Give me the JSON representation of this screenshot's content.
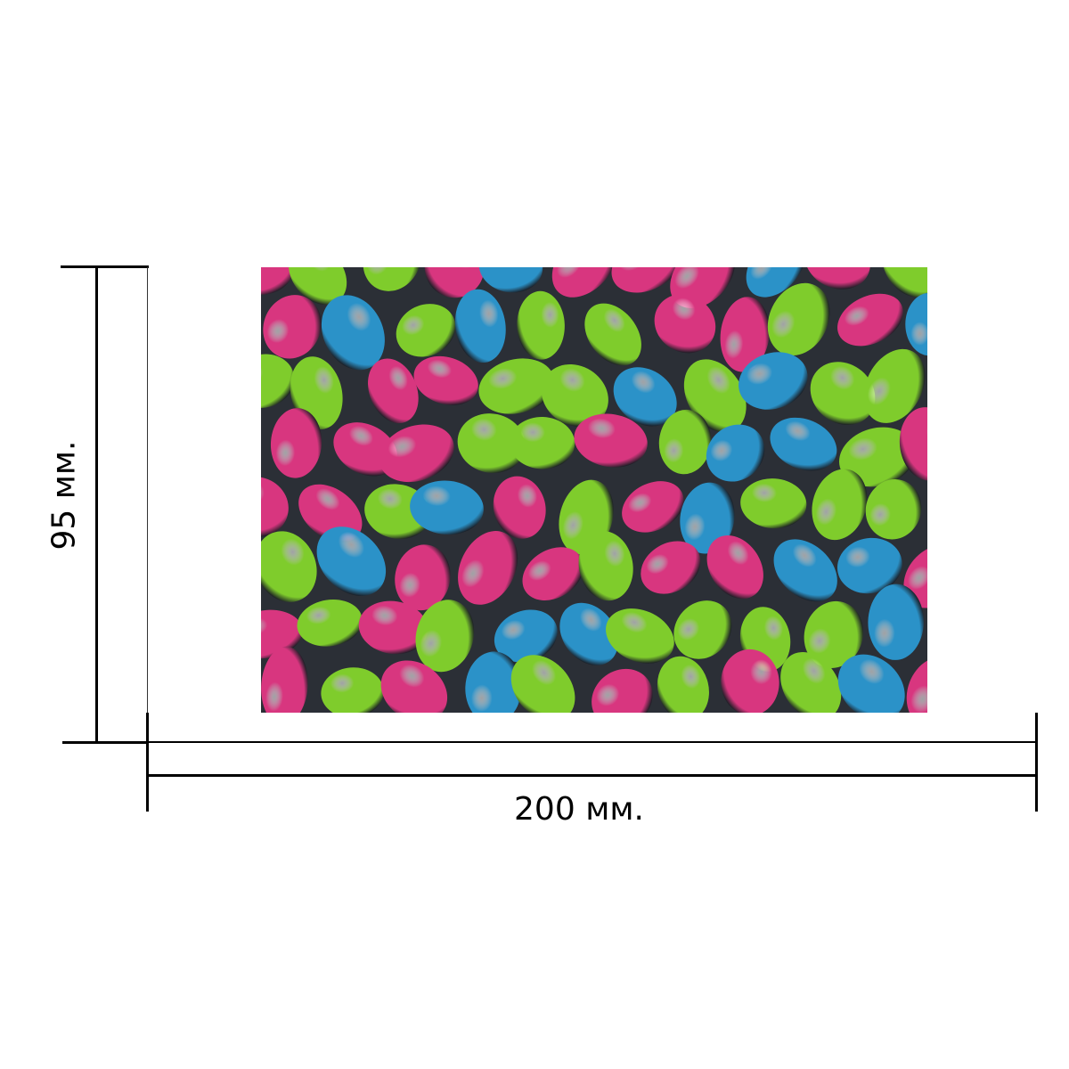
{
  "dimensions": {
    "width_label": "200 мм.",
    "height_label": "95 мм."
  },
  "photo": {
    "subject": "foil-wrapped-chocolate-eggs",
    "colors": {
      "pink": "#d8367f",
      "green": "#7fcc2c",
      "blue": "#2b92c8",
      "background": "#2b2f36"
    }
  },
  "line_color": "#000000"
}
